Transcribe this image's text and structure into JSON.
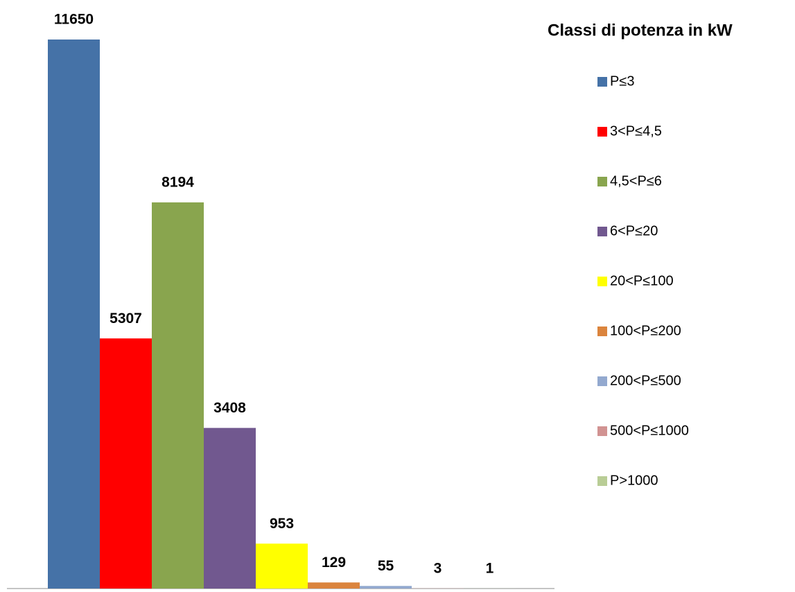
{
  "chart_data": {
    "type": "bar",
    "legend_title": "Classi di potenza in kW",
    "legend": "right",
    "series": [
      {
        "name": "P≤3",
        "color": "#4572A7",
        "values": [
          11650
        ]
      },
      {
        "name": "3<P≤4,5",
        "color": "#FF0000",
        "values": [
          5307
        ]
      },
      {
        "name": "4,5<P≤6",
        "color": "#89A54E",
        "values": [
          8194
        ]
      },
      {
        "name": "6<P≤20",
        "color": "#71588F",
        "values": [
          3408
        ]
      },
      {
        "name": "20<P≤100",
        "color": "#FFFF00",
        "values": [
          953
        ]
      },
      {
        "name": "100<P≤200",
        "color": "#DB843D",
        "values": [
          129
        ]
      },
      {
        "name": "200<P≤500",
        "color": "#93A9CF",
        "values": [
          55
        ]
      },
      {
        "name": "500<P≤1000",
        "color": "#D19392",
        "values": [
          3
        ]
      },
      {
        "name": "P>1000",
        "color": "#B9CD96",
        "values": [
          1
        ]
      }
    ]
  }
}
